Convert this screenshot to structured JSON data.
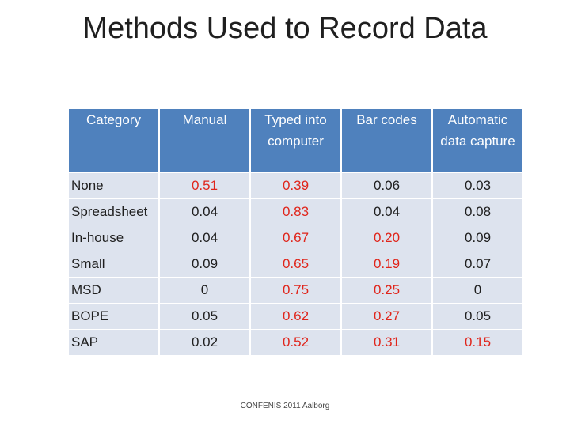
{
  "title": "Methods Used to Record Data",
  "table": {
    "headers": [
      "Category",
      "Manual",
      "Typed into computer",
      "Bar codes",
      "Automatic data capture"
    ],
    "rows": [
      {
        "label": "None",
        "values": [
          "0.51",
          "0.39",
          "0.06",
          "0.03"
        ],
        "highlight": [
          true,
          true,
          false,
          false
        ]
      },
      {
        "label": "Spreadsheet",
        "values": [
          "0.04",
          "0.83",
          "0.04",
          "0.08"
        ],
        "highlight": [
          false,
          true,
          false,
          false
        ]
      },
      {
        "label": "In-house",
        "values": [
          "0.04",
          "0.67",
          "0.20",
          "0.09"
        ],
        "highlight": [
          false,
          true,
          true,
          false
        ]
      },
      {
        "label": "Small",
        "values": [
          "0.09",
          "0.65",
          "0.19",
          "0.07"
        ],
        "highlight": [
          false,
          true,
          true,
          false
        ]
      },
      {
        "label": "MSD",
        "values": [
          "0",
          "0.75",
          "0.25",
          "0"
        ],
        "highlight": [
          false,
          true,
          true,
          false
        ]
      },
      {
        "label": "BOPE",
        "values": [
          "0.05",
          "0.62",
          "0.27",
          "0.05"
        ],
        "highlight": [
          false,
          true,
          true,
          false
        ]
      },
      {
        "label": "SAP",
        "values": [
          "0.02",
          "0.52",
          "0.31",
          "0.15"
        ],
        "highlight": [
          false,
          true,
          true,
          true
        ]
      }
    ]
  },
  "footer": "CONFENIS 2011 Aalborg",
  "colors": {
    "header_bg": "#4f81bd",
    "row_bg": "#dde3ee",
    "highlight_text": "#e0251b"
  }
}
